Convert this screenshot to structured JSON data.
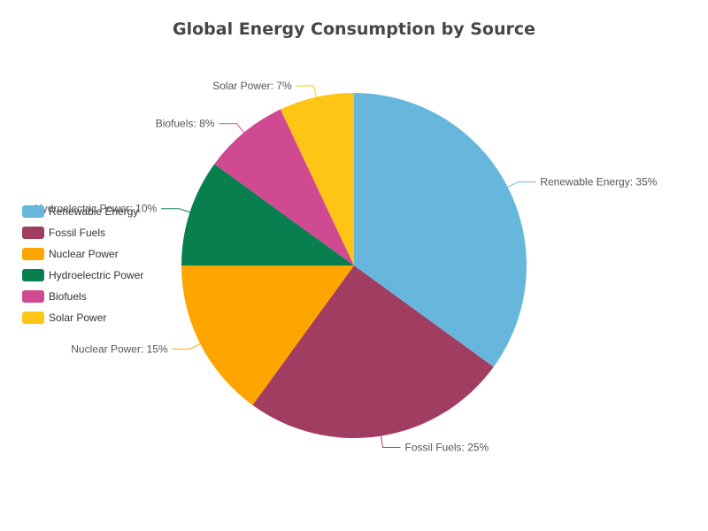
{
  "chart_data": {
    "type": "pie",
    "title": "Global Energy Consumption by Source",
    "slices": [
      {
        "name": "Renewable Energy",
        "value": 35,
        "label": "Renewable Energy: 35%",
        "color": "#67b7dc"
      },
      {
        "name": "Fossil Fuels",
        "value": 25,
        "label": "Fossil Fuels: 25%",
        "color": "#a23d62"
      },
      {
        "name": "Nuclear Power",
        "value": 15,
        "label": "Nuclear Power: 15%",
        "color": "#ffa500"
      },
      {
        "name": "Hydroelectric Power",
        "value": 10,
        "label": "Hydroelectric Power: 10%",
        "color": "#087f4e"
      },
      {
        "name": "Biofuels",
        "value": 8,
        "label": "Biofuels: 8%",
        "color": "#d04a92"
      },
      {
        "name": "Solar Power",
        "value": 7,
        "label": "Solar Power: 7%",
        "color": "#ffc515"
      }
    ],
    "legend": {
      "placement": "left",
      "entries": [
        "Renewable Energy",
        "Fossil Fuels",
        "Nuclear Power",
        "Hydroelectric Power",
        "Biofuels",
        "Solar Power"
      ]
    }
  }
}
